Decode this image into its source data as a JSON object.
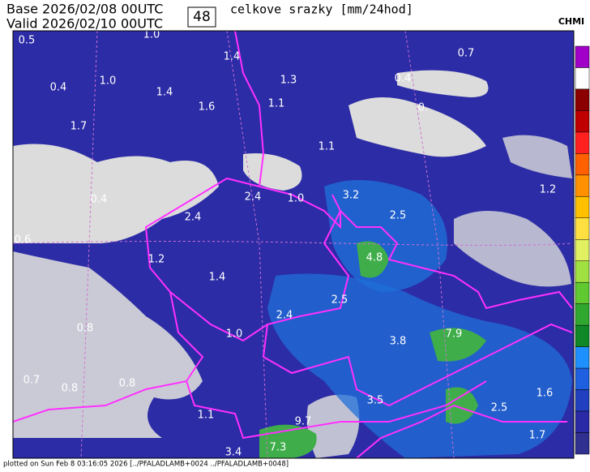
{
  "header": {
    "base": "Base 2026/02/08 00UTC",
    "valid": "Valid 2026/02/10 00UTC",
    "lead": "48",
    "title": "celkove srazky [mm/24hod]",
    "logo": "CHMI"
  },
  "map": {
    "labels": [
      "0.5",
      "1.0",
      "1.4",
      "0.7",
      "1.0",
      "1.3",
      "0.4",
      "0.4",
      "1.4",
      "1.6",
      "1.1",
      "0.",
      "1.7",
      "1.1",
      "1.2",
      "2.4",
      "1.0",
      "3.2",
      "0.4",
      "2.4",
      "2.5",
      "0.6",
      "1.2",
      "4.8",
      "1.4",
      "2.5",
      "2.4",
      "0.8",
      "1.0",
      "7.9",
      "3.8",
      "0.7",
      "0.8",
      "0.8",
      "3.5",
      "1.1",
      "1.6",
      "2.5",
      "9.7",
      "1.7",
      "7.3",
      "3.4"
    ]
  },
  "footer": {
    "text": "plotted on Sun Feb  8 03:16:05 2026 [../PFALADLAMB+0024 ../PFALADLAMB+0048]"
  }
}
